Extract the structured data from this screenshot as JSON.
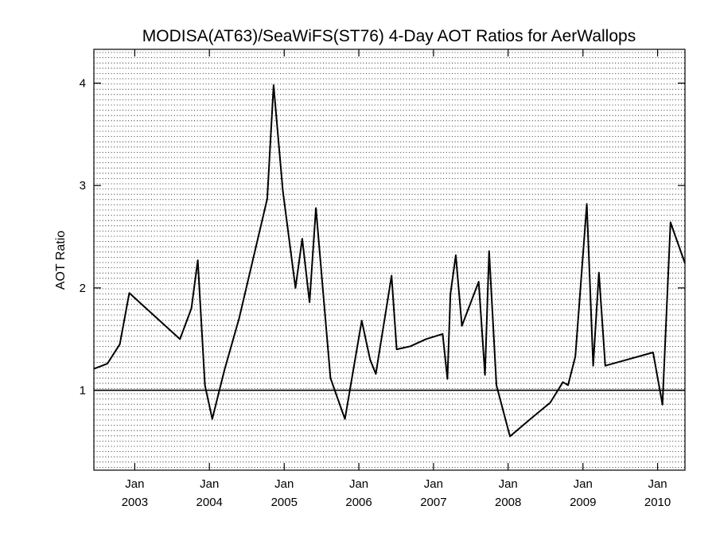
{
  "chart_data": {
    "type": "line",
    "title": "MODISA(AT63)/SeaWiFS(ST76) 4-Day AOT Ratios for AerWallops",
    "xlabel": "",
    "ylabel": "AOT Ratio",
    "xlim": [
      "2002-06-15",
      "2010-05-15"
    ],
    "ylim": [
      0.22,
      4.33
    ],
    "grid": true,
    "reference_line": 1,
    "y_ticks": [
      1,
      2,
      3,
      4
    ],
    "x_ticks": [
      {
        "date": "2003-01-01",
        "month": "Jan",
        "year": "2003"
      },
      {
        "date": "2004-01-01",
        "month": "Jan",
        "year": "2004"
      },
      {
        "date": "2005-01-01",
        "month": "Jan",
        "year": "2005"
      },
      {
        "date": "2006-01-01",
        "month": "Jan",
        "year": "2006"
      },
      {
        "date": "2007-01-01",
        "month": "Jan",
        "year": "2007"
      },
      {
        "date": "2008-01-01",
        "month": "Jan",
        "year": "2008"
      },
      {
        "date": "2009-01-01",
        "month": "Jan",
        "year": "2009"
      },
      {
        "date": "2010-01-01",
        "month": "Jan",
        "year": "2010"
      }
    ],
    "series": [
      {
        "values": [
          [
            "2002-06-15",
            1.21
          ],
          [
            "2002-08-20",
            1.26
          ],
          [
            "2002-10-20",
            1.45
          ],
          [
            "2002-12-05",
            1.95
          ],
          [
            "2003-08-10",
            1.5
          ],
          [
            "2003-10-05",
            1.8
          ],
          [
            "2003-11-05",
            2.27
          ],
          [
            "2003-12-10",
            1.05
          ],
          [
            "2004-01-15",
            0.72
          ],
          [
            "2004-03-15",
            1.2
          ],
          [
            "2004-05-25",
            1.7
          ],
          [
            "2004-10-10",
            2.87
          ],
          [
            "2004-11-10",
            3.98
          ],
          [
            "2004-12-25",
            2.95
          ],
          [
            "2005-02-25",
            2.0
          ],
          [
            "2005-03-30",
            2.48
          ],
          [
            "2005-05-05",
            1.86
          ],
          [
            "2005-06-05",
            2.78
          ],
          [
            "2005-08-15",
            1.12
          ],
          [
            "2005-10-05",
            0.83
          ],
          [
            "2005-10-25",
            0.72
          ],
          [
            "2006-01-15",
            1.68
          ],
          [
            "2006-02-25",
            1.3
          ],
          [
            "2006-03-25",
            1.16
          ],
          [
            "2006-06-10",
            2.12
          ],
          [
            "2006-07-05",
            1.4
          ],
          [
            "2006-09-10",
            1.43
          ],
          [
            "2006-11-25",
            1.5
          ],
          [
            "2007-02-15",
            1.55
          ],
          [
            "2007-03-10",
            1.11
          ],
          [
            "2007-03-25",
            1.94
          ],
          [
            "2007-04-20",
            2.32
          ],
          [
            "2007-05-20",
            1.63
          ],
          [
            "2007-08-10",
            2.06
          ],
          [
            "2007-09-10",
            1.15
          ],
          [
            "2007-09-30",
            2.36
          ],
          [
            "2007-11-05",
            1.05
          ],
          [
            "2008-01-10",
            0.55
          ],
          [
            "2008-05-01",
            0.74
          ],
          [
            "2008-07-25",
            0.88
          ],
          [
            "2008-09-25",
            1.08
          ],
          [
            "2008-10-20",
            1.05
          ],
          [
            "2008-11-25",
            1.33
          ],
          [
            "2009-01-20",
            2.82
          ],
          [
            "2009-02-20",
            1.24
          ],
          [
            "2009-03-20",
            2.15
          ],
          [
            "2009-04-20",
            1.24
          ],
          [
            "2009-12-10",
            1.37
          ],
          [
            "2010-01-25",
            0.86
          ],
          [
            "2010-03-05",
            2.64
          ],
          [
            "2010-05-15",
            2.24
          ]
        ]
      }
    ]
  }
}
